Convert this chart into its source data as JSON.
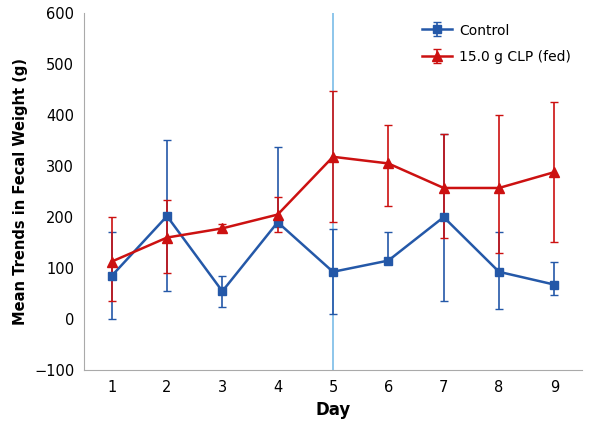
{
  "days": [
    1,
    2,
    3,
    4,
    5,
    6,
    7,
    8,
    9
  ],
  "control_mean": [
    85,
    202,
    55,
    190,
    93,
    115,
    200,
    93,
    68
  ],
  "control_yerr_low": [
    85,
    147,
    30,
    10,
    83,
    0,
    165,
    73,
    20
  ],
  "control_yerr_high": [
    85,
    148,
    30,
    148,
    83,
    55,
    163,
    78,
    45
  ],
  "clp_mean": [
    113,
    160,
    178,
    205,
    318,
    305,
    257,
    257,
    288
  ],
  "clp_yerr_low": [
    78,
    70,
    8,
    35,
    128,
    83,
    97,
    127,
    137
  ],
  "clp_yerr_high": [
    87,
    73,
    8,
    35,
    128,
    75,
    105,
    143,
    137
  ],
  "vline_x": 5,
  "control_color": "#2458A8",
  "clp_color": "#CC1111",
  "vline_color": "#85C1E9",
  "ylabel": "Mean Trends in Fecal Weight (g)",
  "xlabel": "Day",
  "ylim": [
    -100,
    600
  ],
  "yticks": [
    -100,
    0,
    100,
    200,
    300,
    400,
    500,
    600
  ],
  "legend_label_control": "Control",
  "legend_label_clp": "15.0 g CLP (fed)",
  "spine_color": "#AAAAAA"
}
